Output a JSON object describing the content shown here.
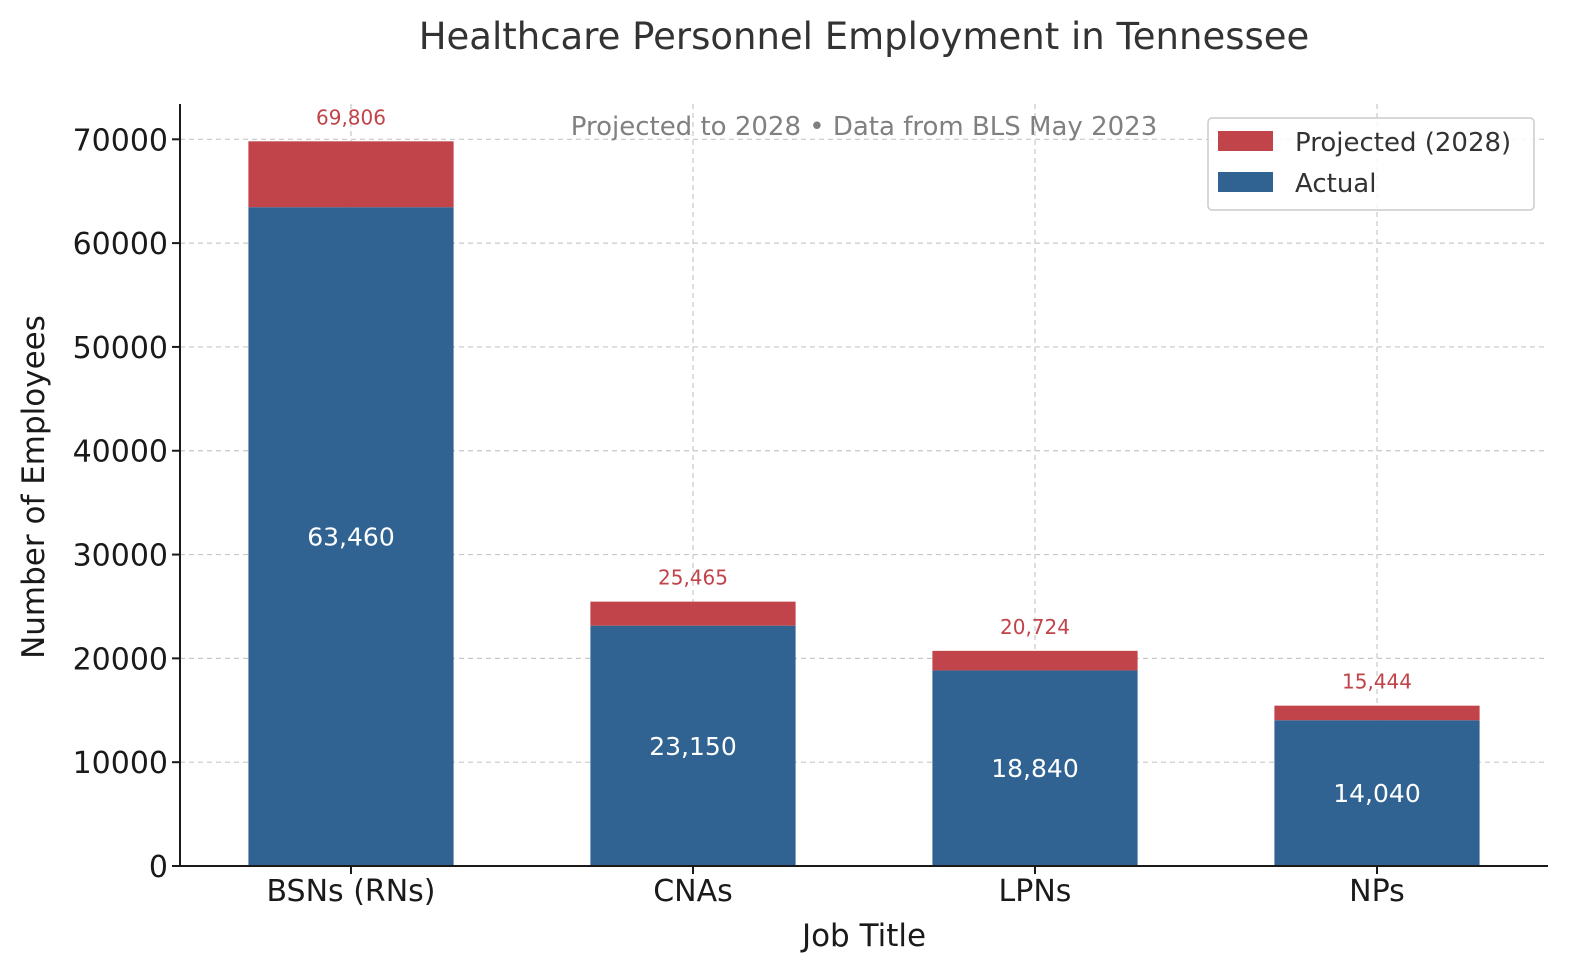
{
  "chart_data": {
    "type": "bar",
    "stacked": true,
    "title": "Healthcare Personnel Employment in Tennessee",
    "subtitle": "Projected to 2028 • Data from BLS May 2023",
    "xlabel": "Job Title",
    "ylabel": "Number of Employees",
    "categories": [
      "BSNs (RNs)",
      "CNAs",
      "LPNs",
      "NPs"
    ],
    "series": [
      {
        "name": "Actual",
        "values": [
          63460,
          23150,
          18840,
          14040
        ],
        "color": "#306392"
      },
      {
        "name": "Projected (2028)",
        "values": [
          6346,
          2315,
          1884,
          1404
        ],
        "color": "#c0444a"
      }
    ],
    "actual_labels": [
      "63,460",
      "23,150",
      "18,840",
      "14,040"
    ],
    "total_labels": [
      "69,806",
      "25,465",
      "20,724",
      "15,444"
    ],
    "totals": [
      69806,
      25465,
      20724,
      15444
    ],
    "ylim": [
      0,
      73400
    ],
    "yticks": [
      "0",
      "10000",
      "20000",
      "30000",
      "40000",
      "50000",
      "60000",
      "70000"
    ],
    "ytick_values": [
      0,
      10000,
      20000,
      30000,
      40000,
      50000,
      60000,
      70000
    ],
    "grid": true,
    "legend": {
      "placement": "top-right",
      "entries": [
        "Projected (2028)",
        "Actual"
      ]
    },
    "colors": {
      "actual": "#306392",
      "projected": "#c0444a",
      "total_label": "#c0444a",
      "subtitle": "#808080"
    }
  }
}
